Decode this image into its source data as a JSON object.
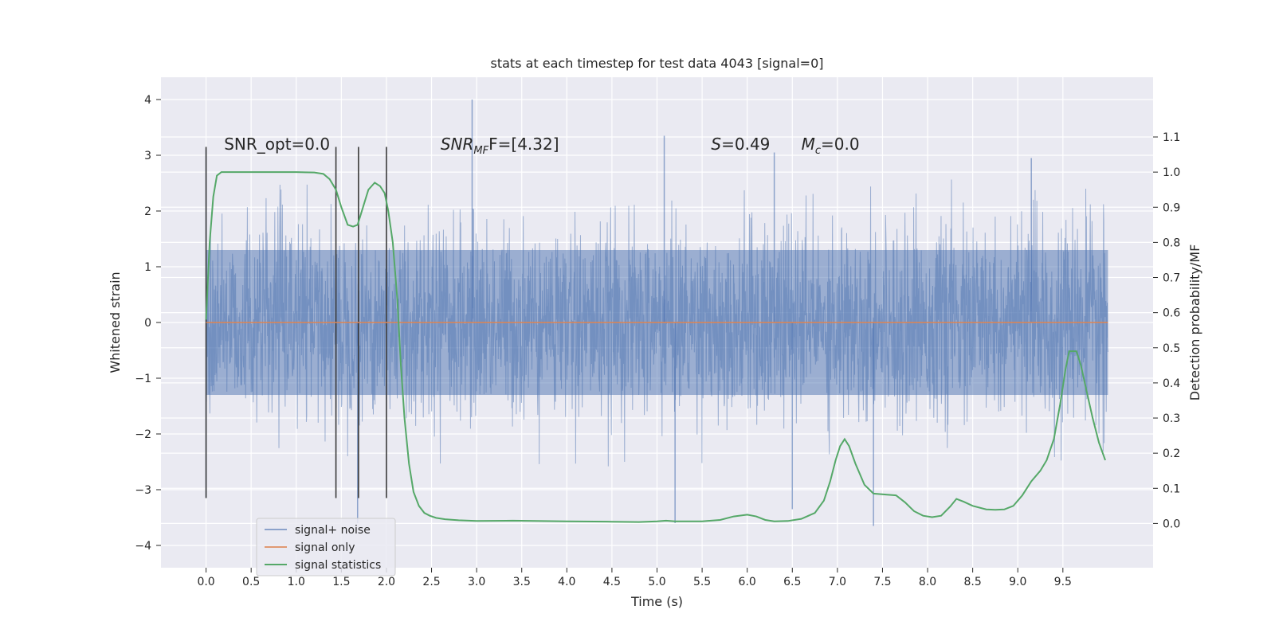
{
  "chart_data": {
    "type": "line",
    "title": "stats at each timestep for test data 4043 [signal=0]",
    "xlabel": "Time (s)",
    "ylabel": "Whitened strain",
    "y2label": "Detection probability/MF",
    "xlim": [
      -0.5,
      10.5
    ],
    "ylim": [
      -4.4,
      4.4
    ],
    "y2lim": [
      -0.126,
      1.27
    ],
    "x_ticks": [
      0.0,
      0.5,
      1.0,
      1.5,
      2.0,
      2.5,
      3.0,
      3.5,
      4.0,
      4.5,
      5.0,
      5.5,
      6.0,
      6.5,
      7.0,
      7.5,
      8.0,
      8.5,
      9.0,
      9.5
    ],
    "x_tick_labels": [
      "0.0",
      "0.5",
      "1.0",
      "1.5",
      "2.0",
      "2.5",
      "3.0",
      "3.5",
      "4.0",
      "4.5",
      "5.0",
      "5.5",
      "6.0",
      "6.5",
      "7.0",
      "7.5",
      "8.0",
      "8.5",
      "9.0",
      "9.5"
    ],
    "y_ticks": [
      4,
      3,
      2,
      1,
      0,
      -1,
      -2,
      -3,
      -4
    ],
    "y_tick_labels": [
      "4",
      "3",
      "2",
      "1",
      "0",
      "−1",
      "−2",
      "−3",
      "−4"
    ],
    "y2_ticks": [
      1.1,
      1.0,
      0.9,
      0.8,
      0.7,
      0.6,
      0.5,
      0.4,
      0.3,
      0.2,
      0.1,
      0.0
    ],
    "y2_tick_labels": [
      "1.1",
      "1.0",
      "0.9",
      "0.8",
      "0.7",
      "0.6",
      "0.5",
      "0.4",
      "0.3",
      "0.2",
      "0.1",
      "0.0"
    ],
    "grid": true,
    "legend_position": "lower-left",
    "annotations": [
      {
        "text": "SNR_opt=0.0",
        "x": 0.2,
        "y": 3.2
      },
      {
        "text": "SNR",
        "sub": "MF",
        "tail": "F=[4.32]",
        "x": 2.6,
        "y": 3.2
      },
      {
        "text": "S=0.49",
        "x": 5.6,
        "y": 3.2
      },
      {
        "text": "M",
        "sub": "c",
        "tail": "=0.0",
        "x": 6.6,
        "y": 3.2
      }
    ],
    "vertical_markers": {
      "x": [
        0.0,
        1.44,
        1.69,
        2.0
      ],
      "y_range": [
        -3.15,
        3.15
      ],
      "color": "#3a3a3a"
    },
    "series": [
      {
        "name": "signal+ noise",
        "color": "#4c72b0",
        "x_range": [
          0.0,
          10.0
        ],
        "noise_band": {
          "lower": -1.3,
          "upper": 1.3
        },
        "typical_extremes": [
          -2.6,
          2.6
        ],
        "peaks": [
          {
            "x": 0.0,
            "y": 3.1
          },
          {
            "x": 0.0,
            "y": -3.15
          },
          {
            "x": 1.68,
            "y": -3.6
          },
          {
            "x": 2.95,
            "y": 4.0
          },
          {
            "x": 5.08,
            "y": 3.35
          },
          {
            "x": 5.2,
            "y": -3.6
          },
          {
            "x": 6.3,
            "y": 3.05
          },
          {
            "x": 6.5,
            "y": -3.35
          },
          {
            "x": 7.4,
            "y": -3.65
          },
          {
            "x": 9.15,
            "y": 2.95
          }
        ]
      },
      {
        "name": "signal only",
        "color": "#dd8452",
        "x": [
          0.0,
          10.0
        ],
        "y": [
          0.0,
          0.0
        ]
      },
      {
        "name": "signal statistics",
        "color": "#55a868",
        "axis": "right",
        "x": [
          0.0,
          0.04,
          0.08,
          0.12,
          0.17,
          0.25,
          0.4,
          0.6,
          0.8,
          1.0,
          1.2,
          1.3,
          1.37,
          1.44,
          1.5,
          1.57,
          1.63,
          1.68,
          1.74,
          1.8,
          1.87,
          1.93,
          1.98,
          2.02,
          2.07,
          2.12,
          2.16,
          2.2,
          2.25,
          2.3,
          2.36,
          2.42,
          2.48,
          2.55,
          2.65,
          2.8,
          3.0,
          3.4,
          4.0,
          4.5,
          4.8,
          5.0,
          5.1,
          5.2,
          5.5,
          5.7,
          5.85,
          6.0,
          6.1,
          6.2,
          6.3,
          6.45,
          6.6,
          6.75,
          6.85,
          6.92,
          6.98,
          7.03,
          7.08,
          7.13,
          7.2,
          7.3,
          7.4,
          7.55,
          7.65,
          7.75,
          7.85,
          7.95,
          8.05,
          8.15,
          8.25,
          8.32,
          8.4,
          8.5,
          8.65,
          8.75,
          8.85,
          8.95,
          9.05,
          9.15,
          9.25,
          9.32,
          9.4,
          9.47,
          9.53,
          9.57,
          9.61,
          9.65,
          9.7,
          9.76,
          9.83,
          9.9,
          9.97
        ],
        "y": [
          0.58,
          0.8,
          0.93,
          0.99,
          1.0,
          1.0,
          1.0,
          1.0,
          1.0,
          1.0,
          0.999,
          0.995,
          0.98,
          0.95,
          0.9,
          0.85,
          0.845,
          0.85,
          0.9,
          0.95,
          0.97,
          0.96,
          0.94,
          0.89,
          0.8,
          0.64,
          0.45,
          0.3,
          0.17,
          0.09,
          0.05,
          0.03,
          0.022,
          0.016,
          0.012,
          0.009,
          0.007,
          0.008,
          0.006,
          0.005,
          0.004,
          0.006,
          0.008,
          0.006,
          0.006,
          0.01,
          0.02,
          0.025,
          0.02,
          0.01,
          0.006,
          0.007,
          0.013,
          0.03,
          0.065,
          0.12,
          0.18,
          0.22,
          0.24,
          0.22,
          0.17,
          0.11,
          0.085,
          0.082,
          0.08,
          0.06,
          0.035,
          0.022,
          0.018,
          0.022,
          0.048,
          0.07,
          0.062,
          0.05,
          0.04,
          0.039,
          0.04,
          0.05,
          0.08,
          0.12,
          0.15,
          0.18,
          0.24,
          0.34,
          0.44,
          0.49,
          0.49,
          0.49,
          0.45,
          0.38,
          0.3,
          0.23,
          0.18
        ]
      }
    ]
  }
}
